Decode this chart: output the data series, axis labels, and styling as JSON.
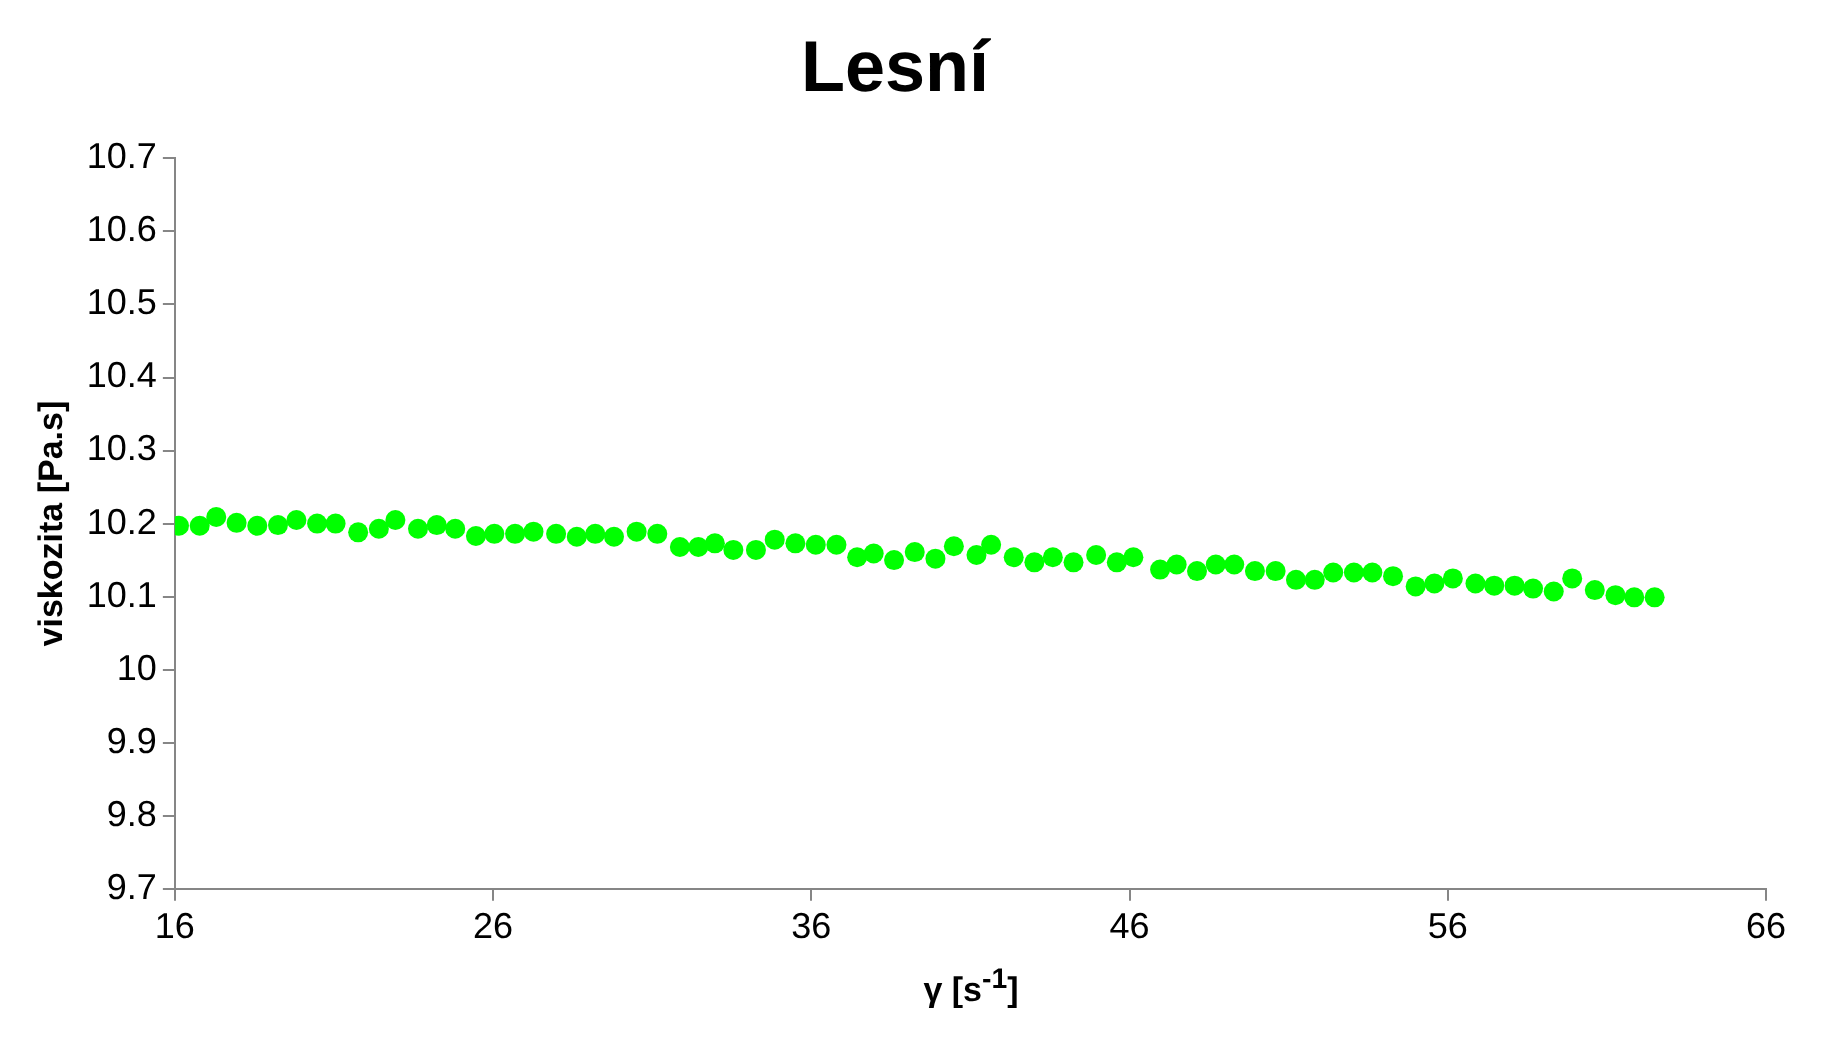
{
  "chart_data": {
    "type": "scatter",
    "title": "Lesní",
    "xlabel": "γ [s$^{-1}$]",
    "ylabel": "viskozita [Pa.s]",
    "x": [
      16.13,
      16.78,
      17.3,
      17.94,
      18.59,
      19.24,
      19.82,
      20.47,
      21.05,
      21.76,
      22.41,
      22.93,
      23.64,
      24.23,
      24.81,
      25.46,
      26.04,
      26.69,
      27.27,
      27.98,
      28.63,
      29.21,
      29.8,
      30.51,
      31.16,
      31.87,
      32.45,
      32.97,
      33.55,
      34.26,
      34.85,
      35.5,
      36.14,
      36.79,
      37.44,
      37.96,
      38.6,
      39.25,
      39.9,
      40.48,
      41.19,
      41.65,
      42.36,
      43.01,
      43.59,
      44.24,
      44.95,
      45.6,
      46.12,
      46.96,
      47.48,
      48.12,
      48.71,
      49.29,
      49.94,
      50.59,
      51.23,
      51.82,
      52.4,
      53.05,
      53.63,
      54.28,
      54.99,
      55.58,
      56.16,
      56.87,
      57.46,
      58.1,
      58.68,
      59.33,
      59.91,
      60.62,
      61.27,
      61.86,
      62.5
    ],
    "series": [
      {
        "color": "#00ff00",
        "values": [
          10.197,
          10.197,
          10.209,
          10.201,
          10.197,
          10.198,
          10.205,
          10.2,
          10.2,
          10.188,
          10.193,
          10.205,
          10.193,
          10.198,
          10.193,
          10.183,
          10.186,
          10.186,
          10.189,
          10.186,
          10.182,
          10.186,
          10.182,
          10.189,
          10.186,
          10.168,
          10.168,
          10.173,
          10.164,
          10.164,
          10.178,
          10.173,
          10.171,
          10.171,
          10.154,
          10.159,
          10.15,
          10.161,
          10.152,
          10.169,
          10.157,
          10.171,
          10.154,
          10.147,
          10.154,
          10.147,
          10.157,
          10.147,
          10.154,
          10.137,
          10.144,
          10.135,
          10.144,
          10.144,
          10.135,
          10.135,
          10.123,
          10.123,
          10.133,
          10.133,
          10.133,
          10.128,
          10.114,
          10.118,
          10.125,
          10.118,
          10.115,
          10.115,
          10.111,
          10.107,
          10.125,
          10.109,
          10.102,
          10.099,
          10.099
        ]
      }
    ],
    "xlim": [
      16,
      66
    ],
    "xticks": [
      16,
      26,
      36,
      46,
      56,
      66
    ],
    "ylim": [
      9.7,
      10.7
    ],
    "yticks": [
      9.7,
      9.8,
      9.9,
      10,
      10.1,
      10.2,
      10.3,
      10.4,
      10.5,
      10.6,
      10.7
    ],
    "grid": false,
    "legend": false,
    "marker": "circle"
  }
}
